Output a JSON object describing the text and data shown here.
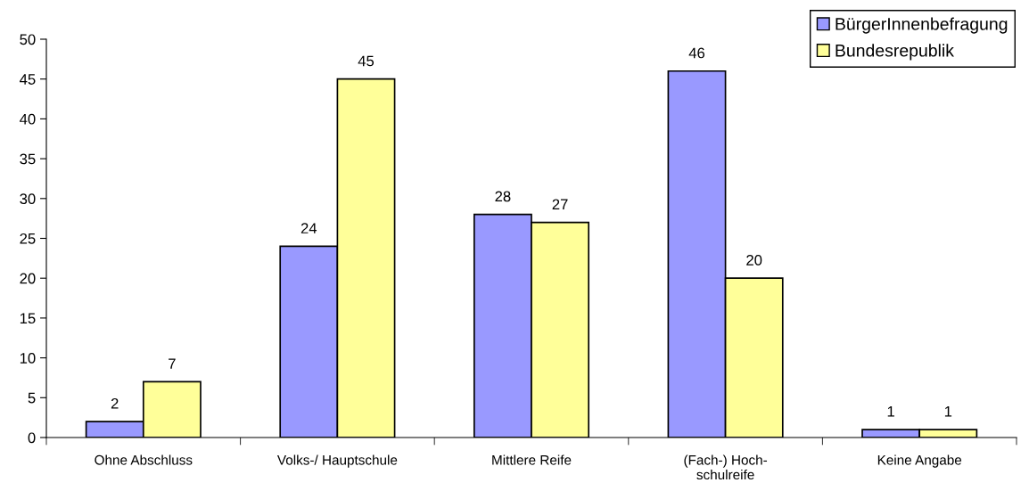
{
  "chart_data": {
    "type": "bar",
    "categories": [
      "Ohne Abschluss",
      "Volks-/ Hauptschule",
      "Mittlere Reife",
      "(Fach-) Hoch-\nschulreife",
      "Keine Angabe"
    ],
    "series": [
      {
        "name": "BürgerInnenbefragung",
        "color": "#9999ff",
        "values": [
          2,
          24,
          28,
          46,
          1
        ]
      },
      {
        "name": "Bundesrepublik",
        "color": "#ffff99",
        "values": [
          7,
          45,
          27,
          20,
          1
        ]
      }
    ],
    "ylim": [
      0,
      50
    ],
    "yticks": [
      0,
      5,
      10,
      15,
      20,
      25,
      30,
      35,
      40,
      45,
      50
    ],
    "data_labels": true,
    "legend": "top right",
    "grid": false
  }
}
